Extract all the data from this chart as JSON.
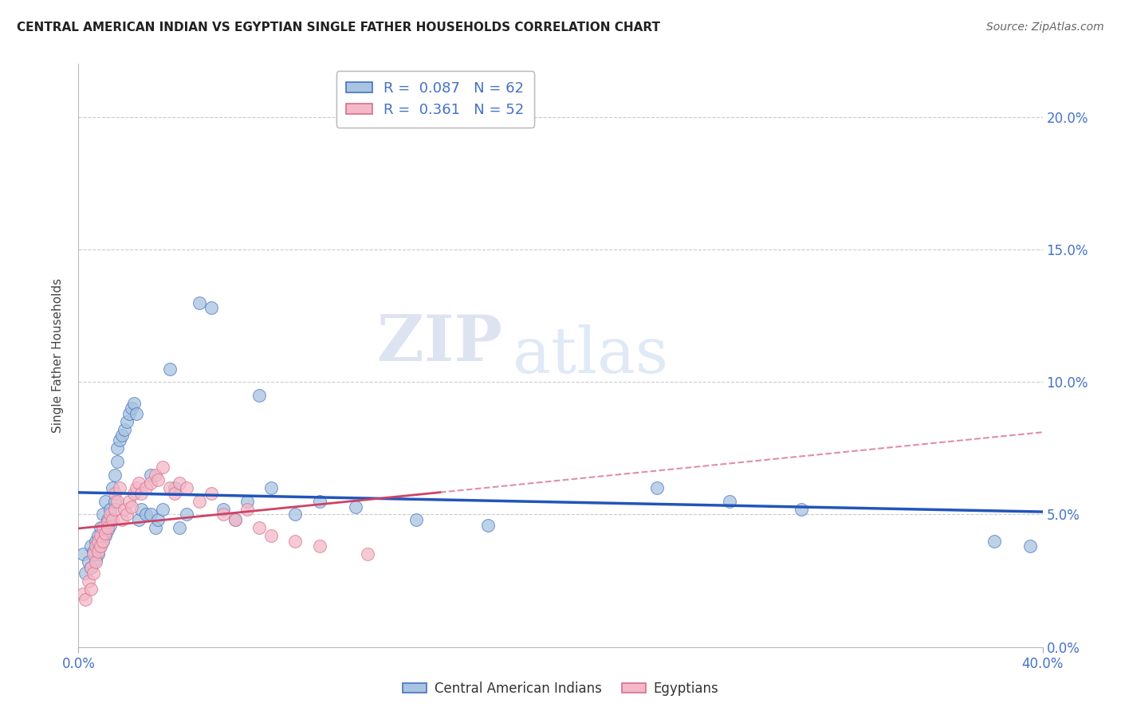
{
  "title": "CENTRAL AMERICAN INDIAN VS EGYPTIAN SINGLE FATHER HOUSEHOLDS CORRELATION CHART",
  "source": "Source: ZipAtlas.com",
  "ylabel": "Single Father Households",
  "xlim": [
    0.0,
    0.4
  ],
  "ylim": [
    0.0,
    0.22
  ],
  "xtick_positions": [
    0.0,
    0.4
  ],
  "xtick_labels": [
    "0.0%",
    "40.0%"
  ],
  "yticks_right": [
    0.0,
    0.05,
    0.1,
    0.15,
    0.2
  ],
  "ytick_labels_right": [
    "0.0%",
    "5.0%",
    "10.0%",
    "15.0%",
    "20.0%"
  ],
  "blue_R": 0.087,
  "blue_N": 62,
  "pink_R": 0.361,
  "pink_N": 52,
  "blue_color": "#a8c4e0",
  "pink_color": "#f4b8c8",
  "blue_edge_color": "#4472c4",
  "pink_edge_color": "#d4708a",
  "blue_line_color": "#2255bb",
  "pink_line_color": "#cc4466",
  "watermark_zip": "ZIP",
  "watermark_atlas": "atlas",
  "legend_label_blue": "Central American Indians",
  "legend_label_pink": "Egyptians",
  "blue_x": [
    0.002,
    0.003,
    0.004,
    0.005,
    0.005,
    0.006,
    0.007,
    0.007,
    0.008,
    0.008,
    0.009,
    0.009,
    0.01,
    0.01,
    0.011,
    0.011,
    0.012,
    0.012,
    0.013,
    0.013,
    0.014,
    0.015,
    0.015,
    0.016,
    0.016,
    0.017,
    0.018,
    0.019,
    0.02,
    0.021,
    0.022,
    0.023,
    0.024,
    0.025,
    0.026,
    0.028,
    0.03,
    0.03,
    0.032,
    0.033,
    0.035,
    0.038,
    0.04,
    0.042,
    0.045,
    0.05,
    0.055,
    0.06,
    0.065,
    0.07,
    0.075,
    0.08,
    0.09,
    0.1,
    0.115,
    0.14,
    0.17,
    0.24,
    0.27,
    0.3,
    0.38,
    0.395
  ],
  "blue_y": [
    0.035,
    0.028,
    0.032,
    0.038,
    0.03,
    0.036,
    0.033,
    0.04,
    0.035,
    0.042,
    0.038,
    0.045,
    0.04,
    0.05,
    0.042,
    0.055,
    0.044,
    0.048,
    0.046,
    0.052,
    0.06,
    0.065,
    0.055,
    0.07,
    0.075,
    0.078,
    0.08,
    0.082,
    0.085,
    0.088,
    0.09,
    0.092,
    0.088,
    0.048,
    0.052,
    0.05,
    0.05,
    0.065,
    0.045,
    0.048,
    0.052,
    0.105,
    0.06,
    0.045,
    0.05,
    0.13,
    0.128,
    0.052,
    0.048,
    0.055,
    0.095,
    0.06,
    0.05,
    0.055,
    0.053,
    0.048,
    0.046,
    0.06,
    0.055,
    0.052,
    0.04,
    0.038
  ],
  "pink_x": [
    0.002,
    0.003,
    0.004,
    0.005,
    0.005,
    0.006,
    0.006,
    0.007,
    0.007,
    0.008,
    0.008,
    0.009,
    0.009,
    0.01,
    0.01,
    0.011,
    0.012,
    0.012,
    0.013,
    0.014,
    0.015,
    0.015,
    0.016,
    0.017,
    0.018,
    0.019,
    0.02,
    0.021,
    0.022,
    0.023,
    0.024,
    0.025,
    0.026,
    0.028,
    0.03,
    0.032,
    0.033,
    0.035,
    0.038,
    0.04,
    0.042,
    0.045,
    0.05,
    0.055,
    0.06,
    0.065,
    0.07,
    0.075,
    0.08,
    0.09,
    0.1,
    0.12
  ],
  "pink_y": [
    0.02,
    0.018,
    0.025,
    0.022,
    0.03,
    0.028,
    0.035,
    0.032,
    0.038,
    0.036,
    0.04,
    0.038,
    0.042,
    0.04,
    0.045,
    0.043,
    0.047,
    0.045,
    0.05,
    0.048,
    0.052,
    0.058,
    0.055,
    0.06,
    0.048,
    0.052,
    0.05,
    0.055,
    0.053,
    0.058,
    0.06,
    0.062,
    0.058,
    0.06,
    0.062,
    0.065,
    0.063,
    0.068,
    0.06,
    0.058,
    0.062,
    0.06,
    0.055,
    0.058,
    0.05,
    0.048,
    0.052,
    0.045,
    0.042,
    0.04,
    0.038,
    0.035
  ]
}
